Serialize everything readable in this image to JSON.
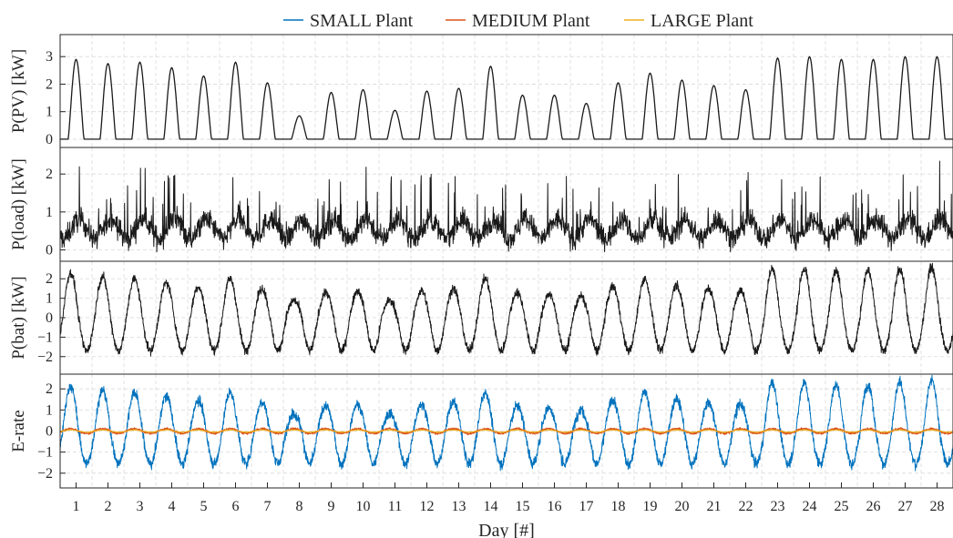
{
  "legend": {
    "items": [
      {
        "label": "SMALL Plant",
        "color": "#0072BD"
      },
      {
        "label": "MEDIUM Plant",
        "color": "#D95319"
      },
      {
        "label": "LARGE Plant",
        "color": "#EDB120"
      }
    ]
  },
  "xaxis": {
    "label": "Day [#]",
    "ticks": [
      "1",
      "2",
      "3",
      "4",
      "5",
      "6",
      "7",
      "8",
      "9",
      "10",
      "11",
      "12",
      "13",
      "14",
      "15",
      "16",
      "17",
      "18",
      "19",
      "20",
      "21",
      "22",
      "23",
      "24",
      "25",
      "26",
      "27",
      "28"
    ]
  },
  "chart_data": [
    {
      "type": "line",
      "ylabel": "P(PV) [kW]",
      "ylim": [
        -0.3,
        3.8
      ],
      "yticks": [
        0,
        1,
        2,
        3
      ],
      "grid": true,
      "series": [
        {
          "color": "#1a1a1a",
          "daily_peak": [
            2.9,
            2.75,
            2.8,
            2.6,
            2.3,
            2.8,
            2.05,
            0.85,
            1.7,
            1.8,
            1.05,
            1.75,
            1.85,
            2.65,
            1.6,
            1.6,
            1.3,
            2.05,
            2.4,
            2.15,
            1.95,
            1.8,
            2.95,
            3.0,
            2.9,
            2.9,
            3.0,
            3.0
          ]
        }
      ]
    },
    {
      "type": "line",
      "ylabel": "P(load) [kW]",
      "ylim": [
        -0.3,
        2.7
      ],
      "yticks": [
        0,
        1,
        2
      ],
      "grid": true,
      "series": [
        {
          "color": "#1a1a1a"
        }
      ]
    },
    {
      "type": "line",
      "ylabel": "P(bat) [kW]",
      "ylim": [
        -2.9,
        2.9
      ],
      "yticks": [
        -2,
        -1,
        0,
        1,
        2
      ],
      "grid": true,
      "series": [
        {
          "color": "#1a1a1a",
          "daily_peak": [
            2.3,
            2.1,
            2.0,
            1.8,
            1.6,
            2.0,
            1.5,
            0.9,
            1.3,
            1.4,
            0.9,
            1.4,
            1.5,
            2.0,
            1.3,
            1.2,
            1.1,
            1.6,
            2.0,
            1.7,
            1.5,
            1.4,
            2.5,
            2.5,
            2.4,
            2.4,
            2.5,
            2.6
          ]
        }
      ]
    },
    {
      "type": "line",
      "ylabel": "E-rate",
      "ylim": [
        -2.7,
        2.7
      ],
      "yticks": [
        -2,
        -1,
        0,
        1,
        2
      ],
      "grid": true,
      "series": [
        {
          "label": "SMALL Plant",
          "color": "#0072BD"
        },
        {
          "label": "MEDIUM Plant",
          "color": "#D95319"
        },
        {
          "label": "LARGE Plant",
          "color": "#EDB120"
        }
      ]
    }
  ]
}
